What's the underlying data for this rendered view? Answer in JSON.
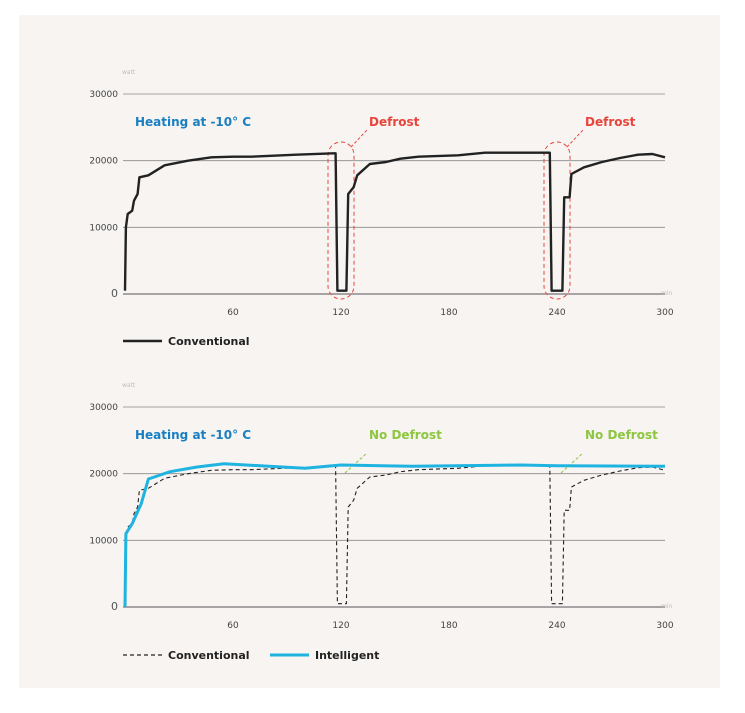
{
  "colors": {
    "background": "#f7f4f2",
    "conventional": "#222222",
    "intelligent": "#1fb3e0",
    "defrost": "#e8453c",
    "no_defrost": "#8dc63f",
    "title": "#1a7fc1",
    "grid": "#8a8a8a"
  },
  "chart_data": [
    {
      "type": "line",
      "title": "Heating at -10° C",
      "xlabel": "min",
      "ylabel": "watt",
      "xlim": [
        0,
        300
      ],
      "ylim": [
        0,
        30000
      ],
      "x_ticks": [
        "60",
        "120",
        "180",
        "240",
        "300"
      ],
      "y_ticks": [
        "30000",
        "20000",
        "10000",
        "0"
      ],
      "grid": "horizontal",
      "legend_position": "bottom-left",
      "annotations": [
        {
          "text": "Defrost",
          "x": 120,
          "color": "#e8453c"
        },
        {
          "text": "Defrost",
          "x": 240,
          "color": "#e8453c"
        }
      ],
      "series": [
        {
          "name": "Conventional",
          "style": "solid",
          "color": "#222222",
          "points": [
            [
              0,
              500
            ],
            [
              0.5,
              10000
            ],
            [
              1.5,
              12000
            ],
            [
              4,
              12500
            ],
            [
              5,
              14000
            ],
            [
              7,
              15000
            ],
            [
              8,
              17500
            ],
            [
              13,
              17800
            ],
            [
              22,
              19300
            ],
            [
              35,
              20000
            ],
            [
              48,
              20500
            ],
            [
              60,
              20600
            ],
            [
              70,
              20600
            ],
            [
              95,
              20900
            ],
            [
              116,
              21100
            ],
            [
              117,
              21100
            ],
            [
              118,
              500
            ],
            [
              123,
              500
            ],
            [
              124,
              15000
            ],
            [
              127,
              16000
            ],
            [
              129,
              17800
            ],
            [
              136,
              19500
            ],
            [
              145,
              19800
            ],
            [
              153,
              20300
            ],
            [
              163,
              20600
            ],
            [
              185,
              20800
            ],
            [
              200,
              21200
            ],
            [
              230,
              21200
            ],
            [
              236,
              21200
            ],
            [
              237,
              500
            ],
            [
              243,
              500
            ],
            [
              244,
              14500
            ],
            [
              247,
              14500
            ],
            [
              248,
              18000
            ],
            [
              255,
              19000
            ],
            [
              265,
              19800
            ],
            [
              275,
              20400
            ],
            [
              285,
              20900
            ],
            [
              293,
              21000
            ],
            [
              300,
              20500
            ]
          ]
        }
      ]
    },
    {
      "type": "line",
      "title": "Heating at -10° C",
      "xlabel": "min",
      "ylabel": "watt",
      "xlim": [
        0,
        300
      ],
      "ylim": [
        0,
        30000
      ],
      "x_ticks": [
        "60",
        "120",
        "180",
        "240",
        "300"
      ],
      "y_ticks": [
        "30000",
        "20000",
        "10000",
        "0"
      ],
      "grid": "horizontal",
      "legend_position": "bottom-left",
      "annotations": [
        {
          "text": "No Defrost",
          "x": 120,
          "color": "#8dc63f"
        },
        {
          "text": "No Defrost",
          "x": 240,
          "color": "#8dc63f"
        }
      ],
      "series": [
        {
          "name": "Conventional",
          "style": "dashed",
          "color": "#222222",
          "points": [
            [
              0,
              500
            ],
            [
              0.5,
              10000
            ],
            [
              1.5,
              12000
            ],
            [
              4,
              12500
            ],
            [
              5,
              14000
            ],
            [
              7,
              15000
            ],
            [
              8,
              17500
            ],
            [
              13,
              17800
            ],
            [
              22,
              19300
            ],
            [
              35,
              20000
            ],
            [
              48,
              20500
            ],
            [
              60,
              20600
            ],
            [
              70,
              20600
            ],
            [
              95,
              20900
            ],
            [
              116,
              21100
            ],
            [
              117,
              21100
            ],
            [
              118,
              500
            ],
            [
              123,
              500
            ],
            [
              124,
              15000
            ],
            [
              127,
              16000
            ],
            [
              129,
              17800
            ],
            [
              136,
              19500
            ],
            [
              145,
              19800
            ],
            [
              153,
              20300
            ],
            [
              163,
              20600
            ],
            [
              185,
              20800
            ],
            [
              200,
              21200
            ],
            [
              230,
              21200
            ],
            [
              236,
              21200
            ],
            [
              237,
              500
            ],
            [
              243,
              500
            ],
            [
              244,
              14500
            ],
            [
              247,
              14500
            ],
            [
              248,
              18000
            ],
            [
              255,
              19000
            ],
            [
              265,
              19800
            ],
            [
              275,
              20400
            ],
            [
              285,
              20900
            ],
            [
              293,
              21000
            ],
            [
              300,
              20500
            ]
          ]
        },
        {
          "name": "Intelligent",
          "style": "solid",
          "color": "#1fb3e0",
          "points": [
            [
              0,
              0
            ],
            [
              0.5,
              11000
            ],
            [
              4,
              12500
            ],
            [
              9,
              15500
            ],
            [
              13,
              19200
            ],
            [
              25,
              20300
            ],
            [
              40,
              21000
            ],
            [
              55,
              21500
            ],
            [
              80,
              21100
            ],
            [
              100,
              20800
            ],
            [
              120,
              21300
            ],
            [
              160,
              21100
            ],
            [
              220,
              21300
            ],
            [
              240,
              21200
            ],
            [
              300,
              21100
            ]
          ]
        }
      ]
    }
  ]
}
